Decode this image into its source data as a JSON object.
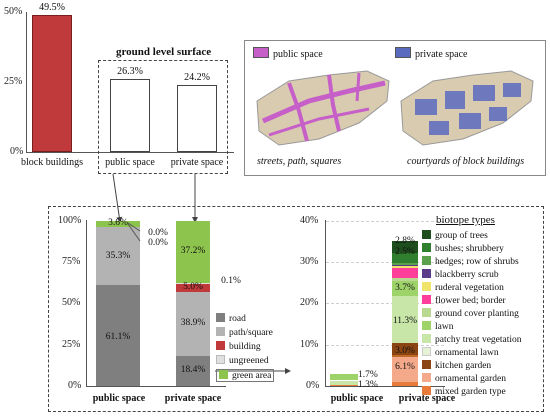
{
  "chart_data": [
    {
      "type": "bar",
      "categories": [
        "block buildings",
        "public space",
        "private space"
      ],
      "values": [
        49.5,
        26.3,
        24.2
      ],
      "value_labels": [
        "49.5%",
        "26.3%",
        "24.2%"
      ],
      "yticks": [
        "50%",
        "25%",
        "0%"
      ],
      "ylim": [
        0,
        50
      ],
      "group_label": "ground level surface",
      "colors": {
        "block buildings": "#c0393b",
        "public space": "#ffffff",
        "private space": "#ffffff"
      }
    },
    {
      "type": "bar",
      "stacked": true,
      "categories": [
        "public space",
        "private space"
      ],
      "yticks": [
        "100%",
        "75%",
        "50%",
        "25%",
        "0%"
      ],
      "ylim": [
        0,
        100
      ],
      "series": [
        {
          "name": "road",
          "values": [
            61.1,
            18.4
          ],
          "color": "#7f7f7f"
        },
        {
          "name": "path/square",
          "values": [
            35.3,
            38.9
          ],
          "color": "#b3b3b3"
        },
        {
          "name": "building",
          "values": [
            0.0,
            5.0
          ],
          "color": "#c0393b"
        },
        {
          "name": "ungreened",
          "values": [
            0.0,
            0.1
          ],
          "color": "#e0e0e0"
        },
        {
          "name": "green area",
          "values": [
            3.6,
            37.2
          ],
          "color": "#8dc44e"
        }
      ],
      "labels": {
        "public": [
          "61.1%",
          "35.3%",
          "0.0%",
          "0.0%",
          "3.6%"
        ],
        "private": [
          "18.4%",
          "38.9%",
          "5.0%",
          "0.1%",
          "37.2%"
        ]
      }
    },
    {
      "type": "bar",
      "stacked": true,
      "categories": [
        "public space",
        "private space"
      ],
      "yticks": [
        "40%",
        "30%",
        "20%",
        "10%",
        "0%"
      ],
      "ylim": [
        0,
        40
      ],
      "legend_title": "biotope types",
      "series": [
        {
          "name": "mixed garden type",
          "values": [
            0.3,
            0.9
          ],
          "color": "#e87a3a"
        },
        {
          "name": "ornamental garden",
          "values": [
            0,
            6.1
          ],
          "color": "#f4a98a"
        },
        {
          "name": "kitchen garden",
          "values": [
            0,
            0.4
          ],
          "color": "#c06a2a"
        },
        {
          "name": "ornamental lawn",
          "values": [
            1.3,
            3.0
          ],
          "color": "#8b4513"
        },
        {
          "name": "patchy treat vegetation",
          "values": [
            0,
            11.3
          ],
          "color": "#c8e6a8"
        },
        {
          "name": "lawn",
          "values": [
            1.7,
            3.7
          ],
          "color": "#9ed36a"
        },
        {
          "name": "ground cover planting",
          "values": [
            0,
            0.8
          ],
          "color": "#b8d98f"
        },
        {
          "name": "flower bed; border",
          "values": [
            0,
            2.5
          ],
          "color": "#ff3d9a"
        },
        {
          "name": "ruderal vegetation",
          "values": [
            0,
            0.5
          ],
          "color": "#f0e46a"
        },
        {
          "name": "blackberry scrub",
          "values": [
            0,
            0.3
          ],
          "color": "#5a3a8a"
        },
        {
          "name": "hedges; row of shrubs",
          "values": [
            0,
            0.6
          ],
          "color": "#5ba04a"
        },
        {
          "name": "bushes; shrubbery",
          "values": [
            0,
            2.5
          ],
          "color": "#2f7f2f"
        },
        {
          "name": "group of trees",
          "values": [
            0,
            2.8
          ],
          "color": "#1e4d1e"
        }
      ],
      "visible_labels": {
        "public": [
          "1.7%",
          "1.3%"
        ],
        "private": [
          "2.8%",
          "2.5%",
          "3.7%",
          "11.3%",
          "3.0%",
          "6.1%"
        ]
      }
    }
  ],
  "map": {
    "public_label": "public space",
    "private_label": "private space",
    "public_caption": "streets, path, squares",
    "private_caption": "courtyards of block buildings",
    "public_color": "#c65fc8",
    "private_color": "#5a6bbf"
  },
  "mid_note": "0.1%"
}
